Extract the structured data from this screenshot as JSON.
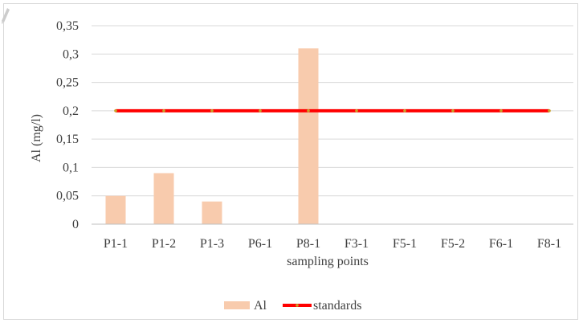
{
  "chart_data": {
    "type": "bar",
    "categories": [
      "P1-1",
      "P1-2",
      "P1-3",
      "P6-1",
      "P8-1",
      "F3-1",
      "F5-1",
      "F5-2",
      "F6-1",
      "F8-1"
    ],
    "series": [
      {
        "name": "Al",
        "kind": "bar",
        "color": "#f8cbad",
        "values": [
          0.05,
          0.09,
          0.04,
          0,
          0.31,
          0,
          0,
          0,
          0,
          0
        ]
      },
      {
        "name": "standards",
        "kind": "line",
        "color": "#ff0000",
        "marker_color": "#c9a227",
        "values": [
          0.2,
          0.2,
          0.2,
          0.2,
          0.2,
          0.2,
          0.2,
          0.2,
          0.2,
          0.2
        ]
      }
    ],
    "xlabel": "sampling points",
    "ylabel": "Al (mg/l)",
    "ylim": [
      0,
      0.35
    ],
    "yticks": [
      "0",
      "0,05",
      "0,1",
      "0,15",
      "0,2",
      "0,25",
      "0,3",
      "0,35"
    ],
    "grid": true,
    "gridline_color": "#d9d9d9",
    "legend_position": "bottom"
  }
}
